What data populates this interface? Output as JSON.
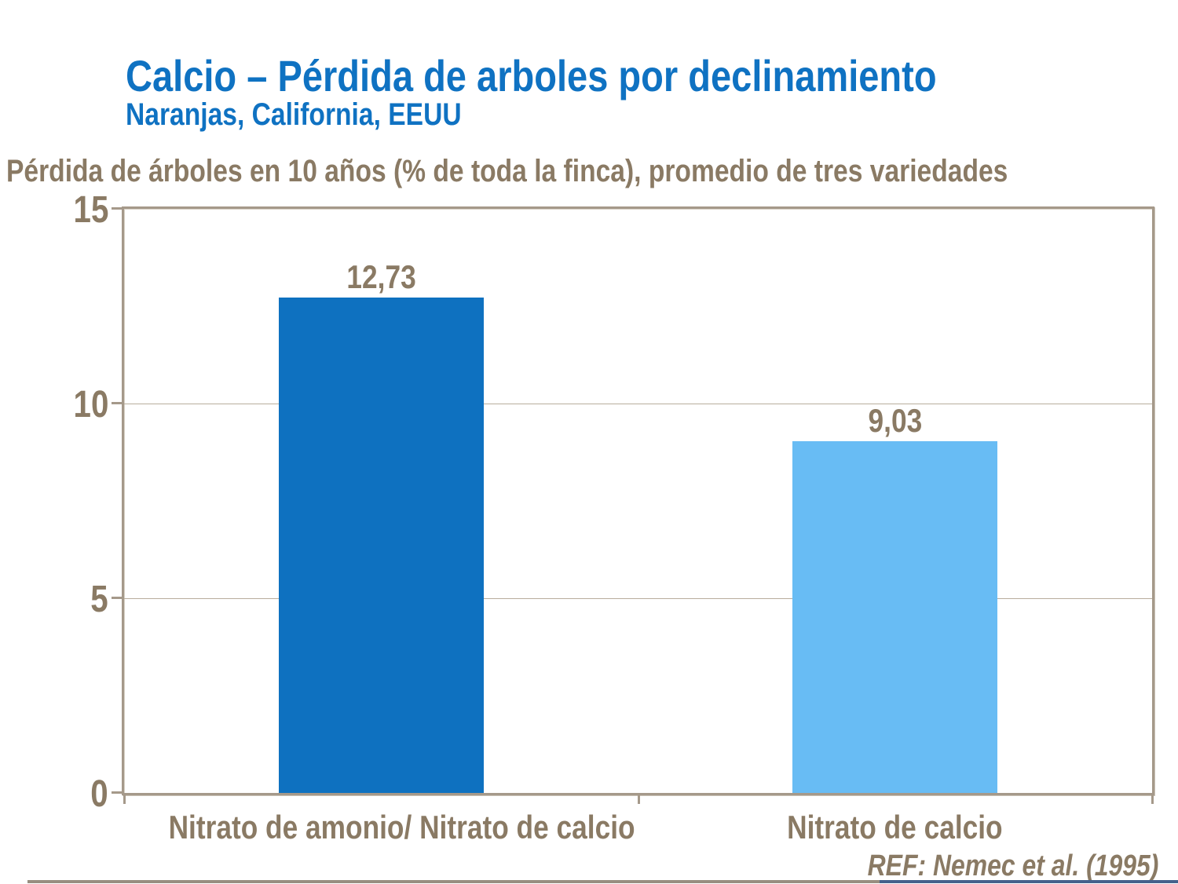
{
  "slide": {
    "title": "Calcio – Pérdida de arboles por declinamiento",
    "subtitle": "Naranjas, California, EEUU"
  },
  "chart_data": {
    "type": "bar",
    "title": "Pérdida de árboles en 10 años (% de toda la finca), promedio de tres variedades",
    "categories": [
      "Nitrato de amonio/ Nitrato de calcio",
      "Nitrato de calcio"
    ],
    "values": [
      12.73,
      9.03
    ],
    "value_labels": [
      "12,73",
      "9,03"
    ],
    "bar_colors": [
      "#0e71c0",
      "#68bcf4"
    ],
    "ylim": [
      0,
      15
    ],
    "yticks": [
      0,
      5,
      10,
      15
    ],
    "ytick_labels": [
      "0",
      "5",
      "10",
      "15"
    ],
    "gridlines": [
      5,
      10
    ],
    "grid": "horizontal",
    "legend": "none",
    "xlabel": "",
    "ylabel": ""
  },
  "footer": {
    "ref": "REF: Nemec et al. (1995)"
  },
  "colors": {
    "title_blue": "#0f72c2",
    "text_tan": "#8a7a64",
    "axis_tan": "#a5998a",
    "gridline_tan": "#b8ad9d",
    "bar_dark_blue": "#0e71c0",
    "bar_light_blue": "#68bcf4",
    "bottom_rule_gray": "#988e80",
    "bottom_rule_blue": "#45618c"
  }
}
